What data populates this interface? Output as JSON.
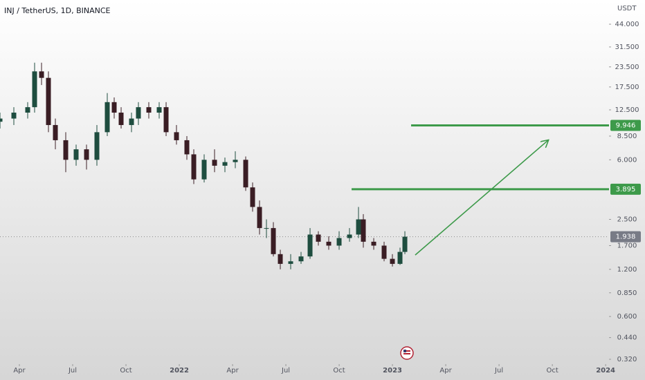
{
  "chart_data": {
    "type": "candlestick",
    "title": "INJ / TetherUS, 1D, BINANCE",
    "y_unit": "USDT",
    "log_scale": true,
    "xlim": [
      1.909,
      36.19
    ],
    "ylim": [
      0.298,
      62.8
    ],
    "xticks": [
      {
        "value": 3,
        "label": "Apr"
      },
      {
        "value": 6,
        "label": "Jul"
      },
      {
        "value": 9,
        "label": "Oct"
      },
      {
        "value": 12,
        "label": "2022"
      },
      {
        "value": 15,
        "label": "Apr"
      },
      {
        "value": 18,
        "label": "Jul"
      },
      {
        "value": 21,
        "label": "Oct"
      },
      {
        "value": 24,
        "label": "2023"
      },
      {
        "value": 27,
        "label": "Apr"
      },
      {
        "value": 30,
        "label": "Jul"
      },
      {
        "value": 33,
        "label": "Oct"
      },
      {
        "value": 36,
        "label": "2024"
      }
    ],
    "yticks": [
      {
        "value": 44,
        "label": "44.000"
      },
      {
        "value": 31.5,
        "label": "31.500"
      },
      {
        "value": 23.5,
        "label": "23.500"
      },
      {
        "value": 17.5,
        "label": "17.500"
      },
      {
        "value": 12.5,
        "label": "12.500"
      },
      {
        "value": 8.5,
        "label": "8.500"
      },
      {
        "value": 6,
        "label": "6.000"
      },
      {
        "value": 2.5,
        "label": "2.500"
      },
      {
        "value": 1.7,
        "label": "1.700"
      },
      {
        "value": 1.2,
        "label": "1.200"
      },
      {
        "value": 0.85,
        "label": "0.850"
      },
      {
        "value": 0.6,
        "label": "0.600"
      },
      {
        "value": 0.44,
        "label": "0.440"
      },
      {
        "value": 0.32,
        "label": "0.320"
      }
    ],
    "up_color": "#1e4d3f",
    "down_color": "#3a1d24",
    "x": [
      1.909,
      2.688,
      3.467,
      3.857,
      4.247,
      4.636,
      5.026,
      5.61,
      6.194,
      6.779,
      7.363,
      7.947,
      8.337,
      8.727,
      9.311,
      9.7,
      10.285,
      10.869,
      11.259,
      11.843,
      12.427,
      12.817,
      13.401,
      13.986,
      14.57,
      15.154,
      15.739,
      16.128,
      16.518,
      16.907,
      17.297,
      17.687,
      18.271,
      18.855,
      19.362,
      19.829,
      20.413,
      20.998,
      21.582,
      22.089,
      22.361,
      22.946,
      23.53,
      23.997,
      24.426,
      24.699
    ],
    "open": [
      10.5,
      11,
      12,
      13,
      22,
      20,
      10,
      8,
      6,
      7,
      6,
      9,
      14,
      12,
      10,
      11,
      13,
      12,
      13,
      9,
      8,
      6.5,
      4.5,
      6,
      5.5,
      5.8,
      6,
      4,
      3,
      2.2,
      2.2,
      1.5,
      1.3,
      1.35,
      1.45,
      2,
      1.8,
      1.7,
      1.9,
      2,
      2.5,
      1.8,
      1.7,
      1.4,
      1.3,
      1.55
    ],
    "high": [
      12,
      13,
      14,
      25,
      25,
      22,
      11,
      9,
      7.5,
      7.5,
      10,
      16,
      15,
      13,
      12,
      14,
      14,
      14,
      14,
      10,
      8.5,
      7,
      6.5,
      7,
      6.2,
      6.8,
      6.3,
      4.3,
      3.3,
      2.5,
      2.4,
      1.6,
      1.5,
      1.55,
      2.2,
      2.1,
      1.95,
      2.1,
      2.2,
      3,
      2.7,
      1.9,
      1.8,
      1.5,
      1.65,
      2.1
    ],
    "low": [
      9.5,
      10,
      11,
      12,
      18,
      9,
      7,
      5,
      5.5,
      5.2,
      5.5,
      8.5,
      11,
      9.5,
      9,
      10,
      11,
      11,
      8.5,
      7.5,
      6,
      4.2,
      4.3,
      5,
      5,
      5.3,
      3.8,
      2.8,
      2,
      1.9,
      1.45,
      1.2,
      1.2,
      1.3,
      1.4,
      1.7,
      1.6,
      1.6,
      1.8,
      1.9,
      1.65,
      1.6,
      1.35,
      1.25,
      1.28,
      1.5
    ],
    "close": [
      11,
      12,
      13,
      22,
      20,
      10,
      8,
      6,
      7,
      6,
      9,
      14,
      12,
      10,
      11,
      13,
      12,
      13,
      9,
      8,
      6.5,
      4.5,
      6,
      5.5,
      5.8,
      6,
      4,
      3,
      2.2,
      2.2,
      1.5,
      1.3,
      1.35,
      1.45,
      2,
      1.8,
      1.7,
      1.9,
      2,
      2.5,
      1.8,
      1.7,
      1.4,
      1.3,
      1.55,
      1.938
    ],
    "last_price": 1.938,
    "levels": [
      {
        "value": 9.946,
        "x_start": 25.05,
        "color": "#3d9a4a"
      },
      {
        "value": 3.895,
        "x_start": 21.7,
        "color": "#3d9a4a"
      }
    ],
    "arrow": {
      "x": [
        25.28,
        32.76
      ],
      "y": [
        1.48,
        7.99
      ],
      "color": "#3d9a4a"
    }
  }
}
